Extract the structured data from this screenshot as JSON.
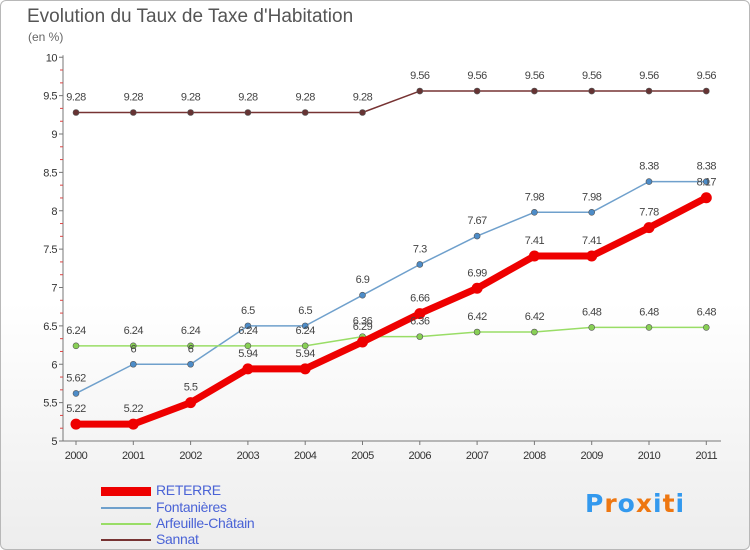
{
  "header": {
    "title": "Evolution du Taux de Taxe d'Habitation",
    "subtitle": "(en %)"
  },
  "legend": {
    "items": [
      {
        "label": "RETERRE",
        "color": "#ee0000",
        "thick": true
      },
      {
        "label": "Fontanières",
        "color": "#6fa0cc",
        "thick": false
      },
      {
        "label": "Arfeuille-Châtain",
        "color": "#99dd66",
        "thick": false
      },
      {
        "label": "Sannat",
        "color": "#773333",
        "thick": false
      }
    ]
  },
  "logo": {
    "text": "Proxiti",
    "colors": [
      "#3399ee",
      "#ee7711",
      "#3399ee",
      "#ee7711",
      "#3399ee",
      "#ee7711",
      "#3399ee"
    ]
  },
  "chart_data": {
    "type": "line",
    "x": [
      "2000",
      "2001",
      "2002",
      "2003",
      "2004",
      "2005",
      "2006",
      "2007",
      "2008",
      "2009",
      "2010",
      "2011"
    ],
    "ylim": [
      5,
      10
    ],
    "yticks": [
      "5",
      "5.5",
      "6",
      "6.5",
      "7",
      "7.5",
      "8",
      "8.5",
      "9",
      "9.5",
      "10"
    ],
    "grid": false,
    "legend_position": "bottom-left",
    "series": [
      {
        "name": "Sannat",
        "color": "#773333",
        "marker": "#663333",
        "values": [
          9.28,
          9.28,
          9.28,
          9.28,
          9.28,
          9.28,
          9.56,
          9.56,
          9.56,
          9.56,
          9.56,
          9.56
        ],
        "labels": [
          "9.28",
          "9.28",
          "9.28",
          "9.28",
          "9.28",
          "9.28",
          "9.56",
          "9.56",
          "9.56",
          "9.56",
          "9.56",
          "9.56"
        ]
      },
      {
        "name": "Fontanières",
        "color": "#6fa0cc",
        "marker": "#4d8cc8",
        "values": [
          5.62,
          6,
          6,
          6.5,
          6.5,
          6.9,
          7.3,
          7.67,
          7.98,
          7.98,
          8.38,
          8.38
        ],
        "labels": [
          "5.62",
          "6",
          "6",
          "6.5",
          "6.5",
          "6.9",
          "7.3",
          "7.67",
          "7.98",
          "7.98",
          "8.38",
          "8.38"
        ]
      },
      {
        "name": "Arfeuille-Châtain",
        "color": "#99dd66",
        "marker": "#88d055",
        "values": [
          6.24,
          6.24,
          6.24,
          6.24,
          6.24,
          6.36,
          6.36,
          6.42,
          6.42,
          6.48,
          6.48,
          6.48
        ],
        "labels": [
          "6.24",
          "6.24",
          "6.24",
          "6.24",
          "6.24",
          "6.36",
          "6.36",
          "6.42",
          "6.42",
          "6.48",
          "6.48",
          "6.48"
        ]
      },
      {
        "name": "RETERRE",
        "color": "#ee0000",
        "marker": "#ee0000",
        "values": [
          5.22,
          5.22,
          5.5,
          5.94,
          5.94,
          6.29,
          6.66,
          6.99,
          7.41,
          7.41,
          7.78,
          8.17
        ],
        "labels": [
          "5.22",
          "5.22",
          "5.5",
          "5.94",
          "5.94",
          "6.29",
          "6.66",
          "6.99",
          "7.41",
          "7.41",
          "7.78",
          "8.17"
        ]
      }
    ]
  }
}
